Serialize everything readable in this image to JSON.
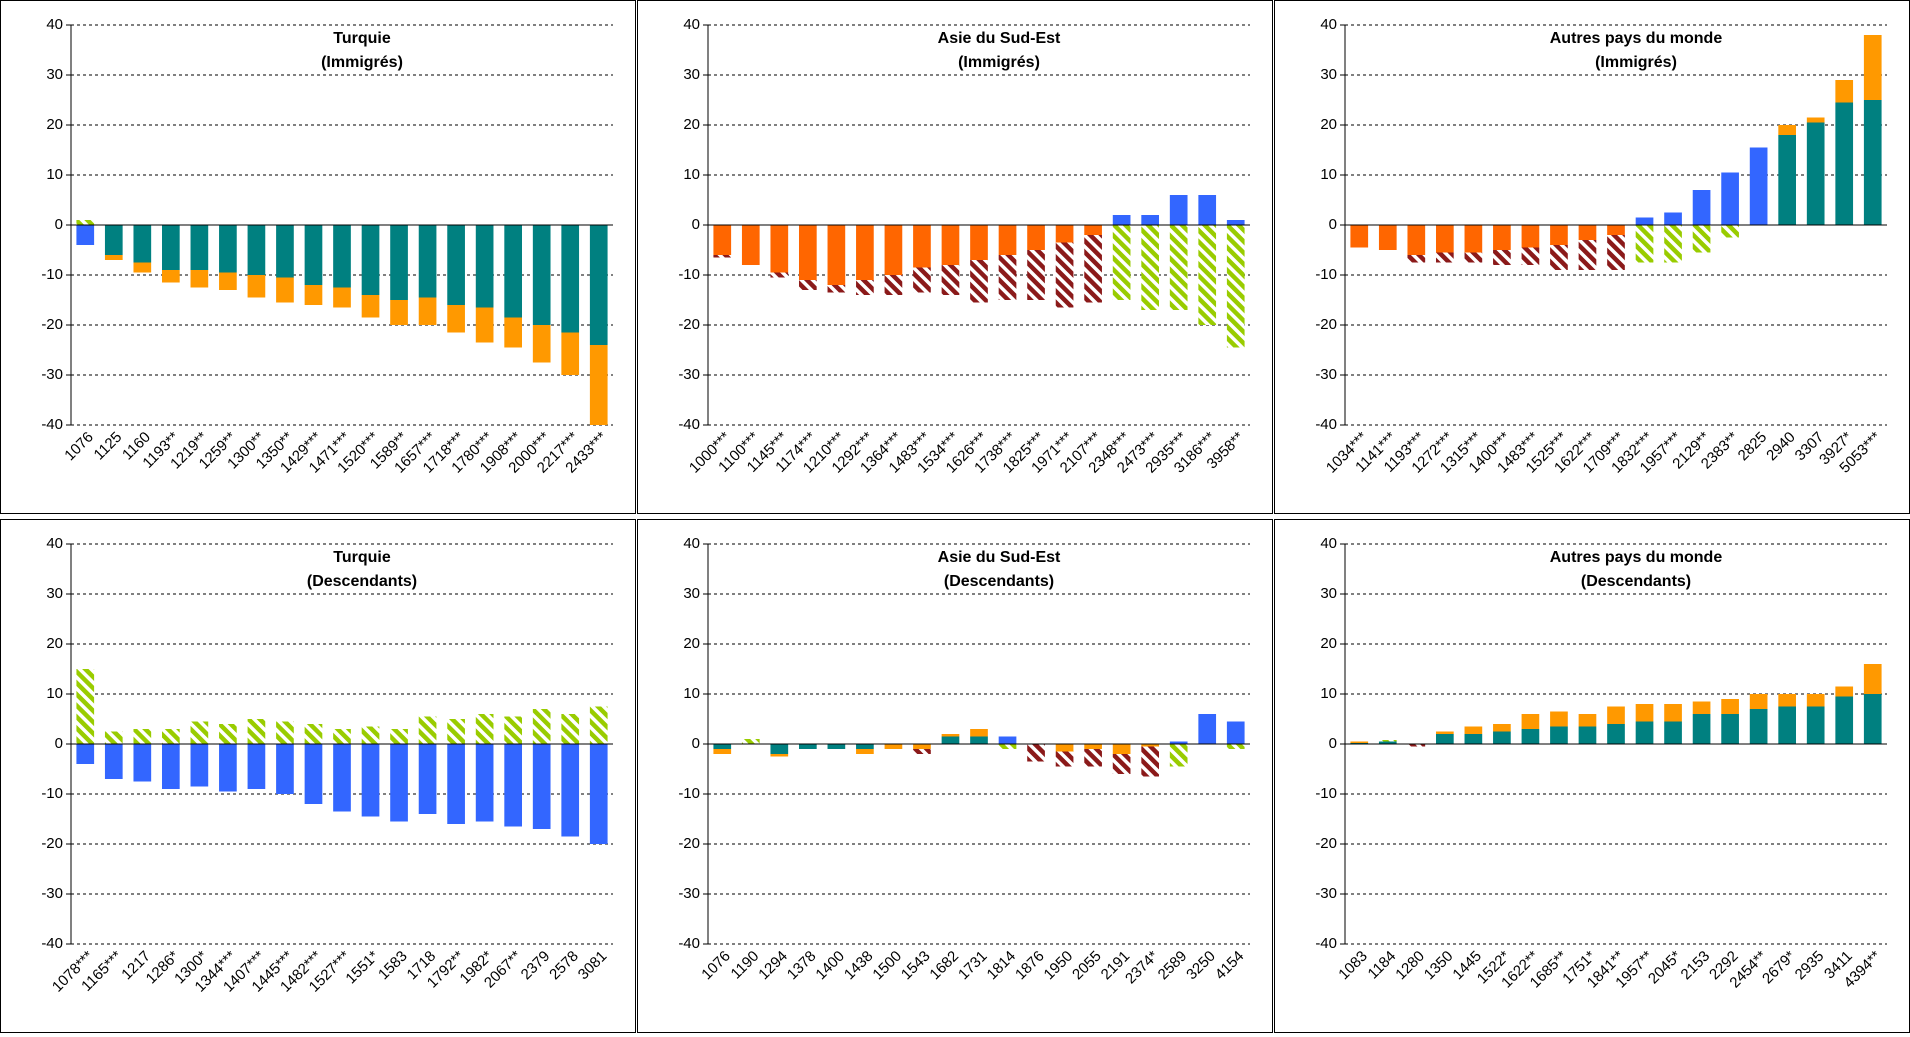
{
  "chart_data": [
    {
      "type": "bar",
      "title": "Turquie",
      "subtitle": "(Immigrés)",
      "categories": [
        "1076",
        "1125",
        "1160",
        "1193**",
        "1219**",
        "1259**",
        "1300**",
        "1350**",
        "1429***",
        "1471***",
        "1520***",
        "1589**",
        "1657***",
        "1718***",
        "1780***",
        "1908***",
        "2000***",
        "2217***",
        "2433***"
      ],
      "series": [
        {
          "values": [
            -4,
            -6,
            -7.5,
            -9,
            -9,
            -9.5,
            -10,
            -10.5,
            -12,
            -12.5,
            -14,
            -15,
            -14.5,
            -16,
            -16.5,
            -18.5,
            -20,
            -21.5,
            -24
          ],
          "colors": [
            "#3366ff",
            "#008080",
            "#008080",
            "#008080",
            "#008080",
            "#008080",
            "#008080",
            "#008080",
            "#008080",
            "#008080",
            "#008080",
            "#008080",
            "#008080",
            "#008080",
            "#008080",
            "#008080",
            "#008080",
            "#008080",
            "#008080"
          ]
        },
        {
          "values": [
            1,
            -1,
            -2,
            -2.5,
            -3.5,
            -3.5,
            -4.5,
            -5,
            -4,
            -4,
            -4.5,
            -5,
            -5.5,
            -5.5,
            -7,
            -6,
            -7.5,
            -8.5,
            -16
          ],
          "colors": [
            "#99cc00",
            "#ff9900",
            "#ff9900",
            "#ff9900",
            "#ff9900",
            "#ff9900",
            "#ff9900",
            "#ff9900",
            "#ff9900",
            "#ff9900",
            "#ff9900",
            "#ff9900",
            "#ff9900",
            "#ff9900",
            "#ff9900",
            "#ff9900",
            "#ff9900",
            "#ff9900",
            "#ff9900"
          ]
        }
      ],
      "hatched_colors": [
        "#8b1a1a",
        "#99cc00"
      ],
      "ylim": [
        -40,
        40
      ],
      "yticks": [
        -40,
        -30,
        -20,
        -10,
        0,
        10,
        20,
        30,
        40
      ],
      "grid": true
    },
    {
      "type": "bar",
      "title": "Asie du Sud-Est",
      "subtitle": "(Immigrés)",
      "categories": [
        "1000***",
        "1100***",
        "1145***",
        "1174***",
        "1210***",
        "1292***",
        "1364***",
        "1483***",
        "1534***",
        "1626***",
        "1738***",
        "1825***",
        "1971***",
        "2107***",
        "2348***",
        "2473***",
        "2935***",
        "3186***",
        "3958**"
      ],
      "series": [
        {
          "values": [
            -6,
            -8,
            -9.5,
            -11,
            -12,
            -11,
            -10,
            -8.5,
            -8,
            -7,
            -6,
            -5,
            -3.5,
            -2,
            2,
            2,
            6,
            6,
            1
          ],
          "colors": [
            "#ff6600",
            "#ff6600",
            "#ff6600",
            "#ff6600",
            "#ff6600",
            "#ff6600",
            "#ff6600",
            "#ff6600",
            "#ff6600",
            "#ff6600",
            "#ff6600",
            "#ff6600",
            "#ff6600",
            "#ff6600",
            "#3366ff",
            "#3366ff",
            "#3366ff",
            "#3366ff",
            "#3366ff"
          ]
        },
        {
          "values": [
            -0.5,
            0,
            -1,
            -2,
            -1.5,
            -3,
            -4,
            -5,
            -6,
            -8.5,
            -9,
            -10,
            -13,
            -13.5,
            -15,
            -17,
            -17,
            -20,
            -24.5
          ],
          "colors": [
            "#8b1a1a",
            "#8b1a1a",
            "#8b1a1a",
            "#8b1a1a",
            "#8b1a1a",
            "#8b1a1a",
            "#8b1a1a",
            "#8b1a1a",
            "#8b1a1a",
            "#8b1a1a",
            "#8b1a1a",
            "#8b1a1a",
            "#8b1a1a",
            "#8b1a1a",
            "#99cc00",
            "#99cc00",
            "#99cc00",
            "#99cc00",
            "#99cc00"
          ]
        }
      ],
      "hatched_colors": [
        "#8b1a1a",
        "#99cc00"
      ],
      "ylim": [
        -40,
        40
      ],
      "yticks": [
        -40,
        -30,
        -20,
        -10,
        0,
        10,
        20,
        30,
        40
      ],
      "grid": true
    },
    {
      "type": "bar",
      "title": "Autres pays du monde",
      "subtitle": "(Immigrés)",
      "categories": [
        "1034***",
        "1141***",
        "1193***",
        "1272***",
        "1315***",
        "1400***",
        "1483***",
        "1525***",
        "1622***",
        "1709***",
        "1832***",
        "1957***",
        "2129**",
        "2383**",
        "2825",
        "2940",
        "3307",
        "3927*",
        "5053***"
      ],
      "series": [
        {
          "values": [
            -4.5,
            -5,
            -6,
            -5.5,
            -5.5,
            -5,
            -4.5,
            -4,
            -3,
            -2,
            1.5,
            2.5,
            7,
            10.5,
            15.5,
            18,
            20.5,
            24.5,
            25
          ],
          "colors": [
            "#ff6600",
            "#ff6600",
            "#ff6600",
            "#ff6600",
            "#ff6600",
            "#ff6600",
            "#ff6600",
            "#ff6600",
            "#ff6600",
            "#ff6600",
            "#3366ff",
            "#3366ff",
            "#3366ff",
            "#3366ff",
            "#3366ff",
            "#008080",
            "#008080",
            "#008080",
            "#008080"
          ]
        },
        {
          "values": [
            0,
            0,
            -1.5,
            -2,
            -2,
            -3,
            -3.5,
            -5,
            -6,
            -7,
            -7.5,
            -7.5,
            -5.5,
            -2.5,
            0,
            2,
            1,
            4.5,
            13
          ],
          "colors": [
            "#8b1a1a",
            "#8b1a1a",
            "#8b1a1a",
            "#8b1a1a",
            "#8b1a1a",
            "#8b1a1a",
            "#8b1a1a",
            "#8b1a1a",
            "#8b1a1a",
            "#8b1a1a",
            "#99cc00",
            "#99cc00",
            "#99cc00",
            "#99cc00",
            "#99cc00",
            "#ff9900",
            "#ff9900",
            "#ff9900",
            "#ff9900"
          ]
        }
      ],
      "hatched_colors": [
        "#8b1a1a",
        "#99cc00"
      ],
      "ylim": [
        -40,
        40
      ],
      "yticks": [
        -40,
        -30,
        -20,
        -10,
        0,
        10,
        20,
        30,
        40
      ],
      "grid": true
    },
    {
      "type": "bar",
      "title": "Turquie",
      "subtitle": "(Descendants)",
      "categories": [
        "1078***",
        "1165***",
        "1217",
        "1286*",
        "1300*",
        "1344***",
        "1407***",
        "1445***",
        "1482***",
        "1527***",
        "1551*",
        "1583",
        "1718",
        "1792**",
        "1982*",
        "2067**",
        "2379",
        "2578",
        "3081"
      ],
      "series": [
        {
          "values": [
            -4,
            -7,
            -7.5,
            -9,
            -8.5,
            -9.5,
            -9,
            -10,
            -12,
            -13.5,
            -14.5,
            -15.5,
            -14,
            -16,
            -15.5,
            -16.5,
            -17,
            -18.5,
            -20
          ],
          "colors": [
            "#3366ff",
            "#3366ff",
            "#3366ff",
            "#3366ff",
            "#3366ff",
            "#3366ff",
            "#3366ff",
            "#3366ff",
            "#3366ff",
            "#3366ff",
            "#3366ff",
            "#3366ff",
            "#3366ff",
            "#3366ff",
            "#3366ff",
            "#3366ff",
            "#3366ff",
            "#3366ff",
            "#3366ff"
          ]
        },
        {
          "values": [
            15,
            2.5,
            3,
            3,
            4.5,
            4,
            5,
            4.5,
            4,
            3,
            3.5,
            3,
            5.5,
            5,
            6,
            5.5,
            7,
            6,
            7.5
          ],
          "colors": [
            "#99cc00",
            "#99cc00",
            "#99cc00",
            "#99cc00",
            "#99cc00",
            "#99cc00",
            "#99cc00",
            "#99cc00",
            "#99cc00",
            "#99cc00",
            "#99cc00",
            "#99cc00",
            "#99cc00",
            "#99cc00",
            "#99cc00",
            "#99cc00",
            "#99cc00",
            "#99cc00",
            "#99cc00"
          ]
        }
      ],
      "hatched_colors": [
        "#8b1a1a",
        "#99cc00"
      ],
      "ylim": [
        -40,
        40
      ],
      "yticks": [
        -40,
        -30,
        -20,
        -10,
        0,
        10,
        20,
        30,
        40
      ],
      "grid": true
    },
    {
      "type": "bar",
      "title": "Asie du Sud-Est",
      "subtitle": "(Descendants)",
      "categories": [
        "1076",
        "1190",
        "1294",
        "1378",
        "1400",
        "1438",
        "1500",
        "1543",
        "1682",
        "1731",
        "1814",
        "1876",
        "1950",
        "2055",
        "2191",
        "2374*",
        "2589",
        "3250",
        "4154"
      ],
      "series": [
        {
          "values": [
            -1,
            0,
            -2,
            -1,
            -1,
            -1,
            -1,
            -1,
            1.5,
            1.5,
            1.5,
            -3.5,
            -1.5,
            -1,
            -2,
            -0.5,
            0.5,
            6,
            4.5
          ],
          "colors": [
            "#008080",
            "#008080",
            "#008080",
            "#008080",
            "#008080",
            "#008080",
            "#ff9900",
            "#ff9900",
            "#008080",
            "#008080",
            "#3366ff",
            "#8b1a1a",
            "#ff9900",
            "#ff9900",
            "#ff9900",
            "#ff9900",
            "#3366ff",
            "#3366ff",
            "#3366ff"
          ]
        },
        {
          "values": [
            -1,
            1,
            -0.5,
            0,
            0,
            -1,
            0,
            -1,
            0.5,
            1.5,
            -1,
            0,
            -3,
            -3.5,
            -4,
            -6,
            -4.5,
            0,
            -1
          ],
          "colors": [
            "#ff9900",
            "#99cc00",
            "#ff9900",
            "#ff9900",
            "#ff9900",
            "#ff9900",
            "#8b1a1a",
            "#8b1a1a",
            "#ff9900",
            "#ff9900",
            "#99cc00",
            "#8b1a1a",
            "#8b1a1a",
            "#8b1a1a",
            "#8b1a1a",
            "#8b1a1a",
            "#99cc00",
            "#99cc00",
            "#99cc00"
          ]
        }
      ],
      "hatched_colors": [
        "#8b1a1a",
        "#99cc00"
      ],
      "ylim": [
        -40,
        40
      ],
      "yticks": [
        -40,
        -30,
        -20,
        -10,
        0,
        10,
        20,
        30,
        40
      ],
      "grid": true
    },
    {
      "type": "bar",
      "title": "Autres pays du monde",
      "subtitle": "(Descendants)",
      "categories": [
        "1083",
        "1184",
        "1280",
        "1350",
        "1445",
        "1522*",
        "1622**",
        "1685**",
        "1751*",
        "1841**",
        "1957**",
        "2045*",
        "2153",
        "2292",
        "2454**",
        "2679*",
        "2935",
        "3411",
        "4394**"
      ],
      "series": [
        {
          "values": [
            0.2,
            0.5,
            -0.5,
            2,
            2,
            2.5,
            3,
            3.5,
            3.5,
            4,
            4.5,
            4.5,
            6,
            6,
            7,
            7.5,
            7.5,
            9.5,
            10
          ],
          "colors": [
            "#008080",
            "#008080",
            "#8b1a1a",
            "#008080",
            "#008080",
            "#008080",
            "#008080",
            "#008080",
            "#008080",
            "#008080",
            "#008080",
            "#008080",
            "#008080",
            "#008080",
            "#008080",
            "#008080",
            "#008080",
            "#008080",
            "#008080"
          ]
        },
        {
          "values": [
            0.3,
            0.3,
            0,
            0.5,
            1.5,
            1.5,
            3,
            3,
            2.5,
            3.5,
            3.5,
            3.5,
            2.5,
            3,
            3,
            2.5,
            2.5,
            2,
            6
          ],
          "colors": [
            "#ff9900",
            "#99cc00",
            "#ff9900",
            "#ff9900",
            "#ff9900",
            "#ff9900",
            "#ff9900",
            "#ff9900",
            "#ff9900",
            "#ff9900",
            "#ff9900",
            "#ff9900",
            "#ff9900",
            "#ff9900",
            "#ff9900",
            "#ff9900",
            "#ff9900",
            "#ff9900",
            "#ff9900"
          ]
        }
      ],
      "hatched_colors": [
        "#8b1a1a",
        "#99cc00"
      ],
      "ylim": [
        -40,
        40
      ],
      "yticks": [
        -40,
        -30,
        -20,
        -10,
        0,
        10,
        20,
        30,
        40
      ],
      "grid": true
    }
  ]
}
